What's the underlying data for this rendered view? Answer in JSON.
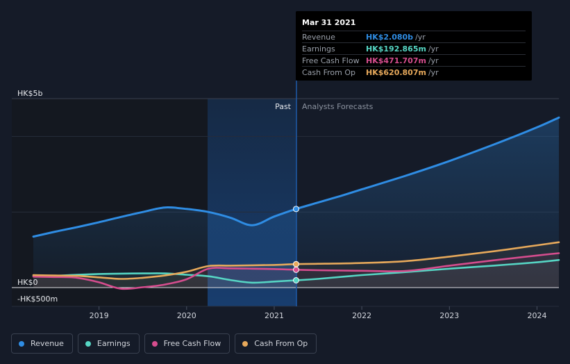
{
  "chart_data": {
    "type": "line",
    "x_axis": {
      "ticks": [
        "2019",
        "2020",
        "2021",
        "2022",
        "2023",
        "2024"
      ]
    },
    "y_axis": {
      "labels": [
        "HK$5b",
        "HK$0",
        "-HK$500m"
      ],
      "ylim": [
        -500,
        5000
      ],
      "unit": "HK$ millions"
    },
    "section_labels": {
      "past": "Past",
      "forecast": "Analysts Forecasts"
    },
    "highlight_date": "Mar 31 2021",
    "series": [
      {
        "name": "Revenue",
        "color": "#2f8de4",
        "x": [
          2018.25,
          2018.5,
          2018.75,
          2019.0,
          2019.25,
          2019.5,
          2019.75,
          2020.0,
          2020.25,
          2020.5,
          2020.75,
          2021.0,
          2021.25,
          2021.5,
          2021.75,
          2022.0,
          2022.5,
          2023.0,
          2023.5,
          2024.0,
          2024.25
        ],
        "values": [
          1350,
          1480,
          1600,
          1730,
          1870,
          2000,
          2120,
          2080,
          2000,
          1850,
          1650,
          1880,
          2080,
          2250,
          2420,
          2600,
          2960,
          3350,
          3780,
          4240,
          4500
        ]
      },
      {
        "name": "Earnings",
        "color": "#56d6c4",
        "x": [
          2018.25,
          2018.5,
          2018.75,
          2019.0,
          2019.25,
          2019.5,
          2019.75,
          2020.0,
          2020.25,
          2020.5,
          2020.75,
          2021.0,
          2021.25,
          2021.5,
          2022.0,
          2022.5,
          2023.0,
          2023.5,
          2024.0,
          2024.25
        ],
        "values": [
          310,
          315,
          340,
          360,
          370,
          375,
          375,
          340,
          300,
          200,
          130,
          160,
          193,
          230,
          330,
          410,
          500,
          580,
          670,
          730
        ]
      },
      {
        "name": "Free Cash Flow",
        "color": "#d64d8e",
        "x": [
          2018.25,
          2018.5,
          2018.75,
          2019.0,
          2019.25,
          2019.5,
          2019.75,
          2020.0,
          2020.25,
          2020.5,
          2020.75,
          2021.0,
          2021.25,
          2021.5,
          2022.0,
          2022.5,
          2023.0,
          2023.5,
          2024.0,
          2024.25
        ],
        "values": [
          290,
          280,
          260,
          140,
          -30,
          10,
          80,
          220,
          500,
          510,
          500,
          490,
          472,
          460,
          445,
          440,
          580,
          720,
          850,
          910
        ]
      },
      {
        "name": "Cash From Op",
        "color": "#e7a95b",
        "x": [
          2018.25,
          2018.5,
          2018.75,
          2019.0,
          2019.25,
          2019.5,
          2019.75,
          2020.0,
          2020.25,
          2020.5,
          2020.75,
          2021.0,
          2021.25,
          2021.5,
          2022.0,
          2022.5,
          2023.0,
          2023.5,
          2024.0,
          2024.25
        ],
        "values": [
          330,
          320,
          310,
          270,
          230,
          260,
          320,
          420,
          570,
          580,
          590,
          600,
          621,
          630,
          650,
          700,
          820,
          960,
          1120,
          1200
        ]
      }
    ]
  },
  "tooltip": {
    "date": "Mar 31 2021",
    "rows": [
      {
        "name": "Revenue",
        "value": "HK$2.080b",
        "unit": "/yr",
        "color": "#2f8de4"
      },
      {
        "name": "Earnings",
        "value": "HK$192.865m",
        "unit": "/yr",
        "color": "#56d6c4"
      },
      {
        "name": "Free Cash Flow",
        "value": "HK$471.707m",
        "unit": "/yr",
        "color": "#d64d8e"
      },
      {
        "name": "Cash From Op",
        "value": "HK$620.807m",
        "unit": "/yr",
        "color": "#e7a95b"
      }
    ]
  },
  "legend": [
    {
      "label": "Revenue",
      "color": "#2f8de4"
    },
    {
      "label": "Earnings",
      "color": "#56d6c4"
    },
    {
      "label": "Free Cash Flow",
      "color": "#d64d8e"
    },
    {
      "label": "Cash From Op",
      "color": "#e7a95b"
    }
  ]
}
